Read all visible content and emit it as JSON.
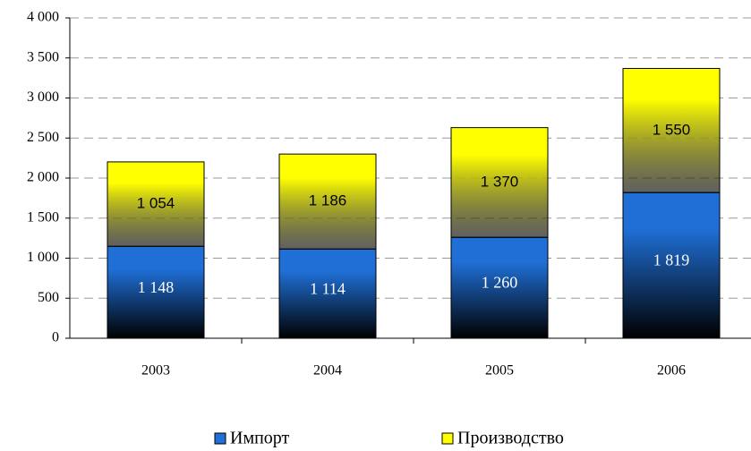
{
  "chart_data": {
    "type": "stacked-bar",
    "categories": [
      "2003",
      "2004",
      "2005",
      "2006"
    ],
    "series": [
      {
        "name": "Импорт",
        "color": "#1f6fd6",
        "values": [
          1148,
          1114,
          1260,
          1819
        ],
        "value_labels": [
          "1 148",
          "1 114",
          "1 260",
          "1 819"
        ]
      },
      {
        "name": "Производство",
        "color": "#ffff00",
        "values": [
          1054,
          1186,
          1370,
          1550
        ],
        "value_labels": [
          "1 054",
          "1 186",
          "1 370",
          "1 550"
        ]
      }
    ],
    "ylim": [
      0,
      4000
    ],
    "yticks": [
      0,
      500,
      {
        "value": 1000,
        "label": "1 000"
      },
      {
        "value": 1500,
        "label": "1 500"
      },
      {
        "value": 2000,
        "label": "2 000"
      },
      {
        "value": 2500,
        "label": "2 500"
      },
      {
        "value": 3000,
        "label": "3 000"
      },
      {
        "value": 3500,
        "label": "3 500"
      },
      {
        "value": 4000,
        "label": "4 000"
      }
    ],
    "grid": true,
    "legend": "bottom"
  }
}
